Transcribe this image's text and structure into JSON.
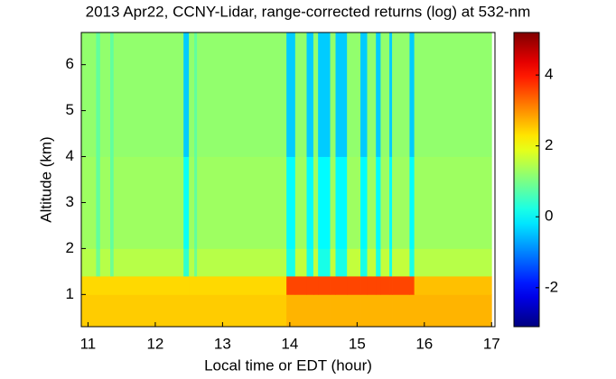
{
  "chart_data": {
    "type": "heatmap",
    "title": "2013 Apr22, CCNY-Lidar, range-corrected returns (log) at 532-nm",
    "xlabel": "Local time or EDT (hour)",
    "ylabel": "Altitude (km)",
    "colormap": "jet",
    "x": [
      10.9,
      11.12,
      11.18,
      11.33,
      11.38,
      12.42,
      12.5,
      12.58,
      12.62,
      13.95,
      14.08,
      14.25,
      14.35,
      14.42,
      14.6,
      14.68,
      14.85,
      15.05,
      15.15,
      15.28,
      15.35,
      15.48,
      15.52,
      15.78,
      15.85,
      17.0
    ],
    "y": [
      0.3,
      1.0,
      1.4,
      2.0,
      4.0,
      6.7
    ],
    "z": [
      [
        2.5,
        2.5,
        2.5,
        2.5,
        2.5,
        2.5,
        2.5,
        2.5,
        2.5,
        2.7,
        2.7,
        2.7,
        2.7,
        2.7,
        2.7,
        2.7,
        2.7,
        2.7,
        2.7,
        2.7,
        2.7,
        2.7,
        2.7,
        2.7,
        2.7
      ],
      [
        2.4,
        2.4,
        2.4,
        2.4,
        2.4,
        2.4,
        2.4,
        2.4,
        2.4,
        3.6,
        3.6,
        3.6,
        3.6,
        3.6,
        3.6,
        3.6,
        3.6,
        3.6,
        3.6,
        3.6,
        3.6,
        3.6,
        3.6,
        3.6,
        2.6
      ],
      [
        1.5,
        0.9,
        1.5,
        0.9,
        1.5,
        0.4,
        1.5,
        0.9,
        1.5,
        0.2,
        1.6,
        0.2,
        1.6,
        0.2,
        1.6,
        0.2,
        1.6,
        0.2,
        1.6,
        0.2,
        1.6,
        0.2,
        1.6,
        0.2,
        1.5
      ],
      [
        1.3,
        0.8,
        1.3,
        0.8,
        1.3,
        0.1,
        1.3,
        0.8,
        1.3,
        0.0,
        1.3,
        0.0,
        1.3,
        0.0,
        1.3,
        0.0,
        1.3,
        0.0,
        1.3,
        0.0,
        1.3,
        0.0,
        1.3,
        0.0,
        1.3
      ],
      [
        1.2,
        0.8,
        1.2,
        0.8,
        1.2,
        -0.4,
        1.2,
        0.8,
        1.2,
        -0.4,
        1.2,
        -0.4,
        1.2,
        -0.4,
        1.2,
        -0.4,
        1.2,
        -0.4,
        1.2,
        -0.4,
        1.2,
        -0.4,
        1.2,
        -0.4,
        1.2
      ]
    ],
    "xlim": [
      10.9,
      17.05
    ],
    "xticks": [
      11,
      12,
      13,
      14,
      15,
      16,
      17
    ],
    "ylim": [
      0.3,
      6.7
    ],
    "yticks": [
      1,
      2,
      3,
      4,
      5,
      6
    ],
    "clim": [
      -3.1,
      5.2
    ],
    "cticks": [
      -2,
      0,
      2,
      4
    ]
  }
}
